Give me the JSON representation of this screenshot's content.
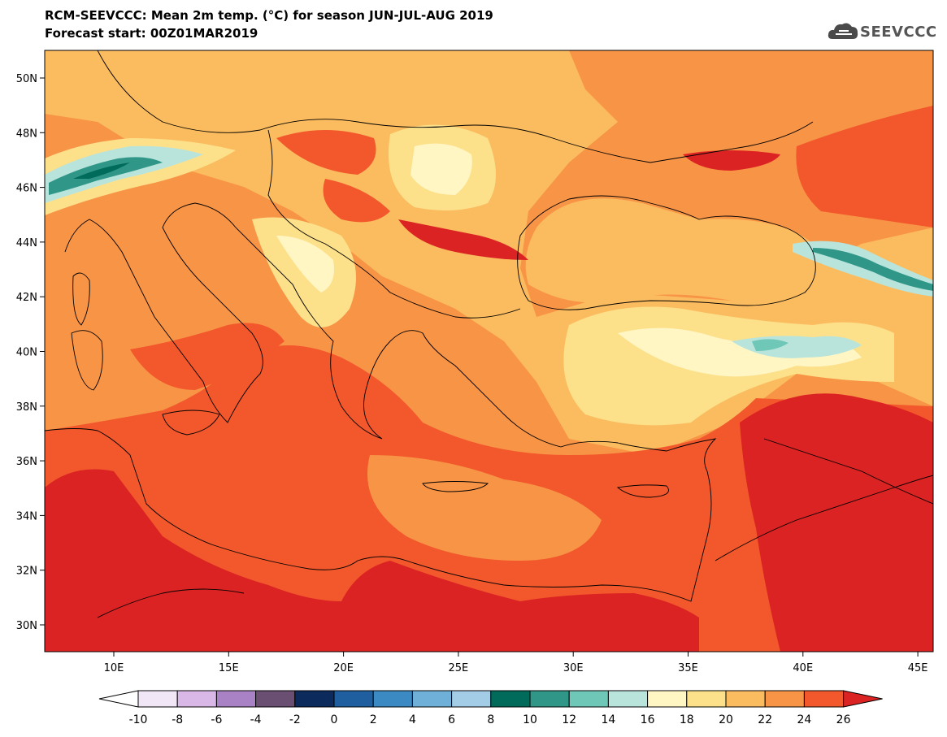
{
  "title": {
    "line1": "RCM-SEEVCCC: Mean 2m temp. (°C) for season JUN-JUL-AUG 2019",
    "line2": "Forecast start: 00Z01MAR2019"
  },
  "logo": {
    "text": "SEEVCCC",
    "icon": "cloud-icon"
  },
  "map": {
    "lat_ticks": [
      "50N",
      "48N",
      "46N",
      "44N",
      "42N",
      "40N",
      "38N",
      "36N",
      "34N",
      "32N",
      "30N"
    ],
    "lon_ticks": [
      "10E",
      "15E",
      "20E",
      "25E",
      "30E",
      "35E",
      "40E",
      "45E"
    ],
    "variable": "Mean 2m temperature",
    "units": "°C"
  },
  "colorbar": {
    "levels": [
      "-10",
      "-8",
      "-6",
      "-4",
      "-2",
      "0",
      "2",
      "4",
      "6",
      "8",
      "10",
      "12",
      "14",
      "16",
      "18",
      "20",
      "22",
      "24",
      "26"
    ],
    "colors": [
      "#f0e6f5",
      "#d9b8e8",
      "#a882c4",
      "#6b4f73",
      "#0d2a5c",
      "#1f5fa0",
      "#3b8ac4",
      "#6fb0d8",
      "#a3cde6",
      "#006b5a",
      "#2f9688",
      "#6fc7b8",
      "#b9e4dc",
      "#fff6c4",
      "#fde08a",
      "#fbbc5f",
      "#f89446",
      "#f2582c"
    ],
    "under_color": "#ffffff",
    "over_color": "#dc2323"
  },
  "palette": {
    "t18": "#fff6c4",
    "t20": "#fde08a",
    "t22": "#fbbc5f",
    "t24": "#f89446",
    "t26": "#f2582c",
    "t28": "#dc2323",
    "t14": "#b9e4dc",
    "t12": "#6fc7b8",
    "t10": "#2f9688",
    "t8": "#006b5a"
  }
}
